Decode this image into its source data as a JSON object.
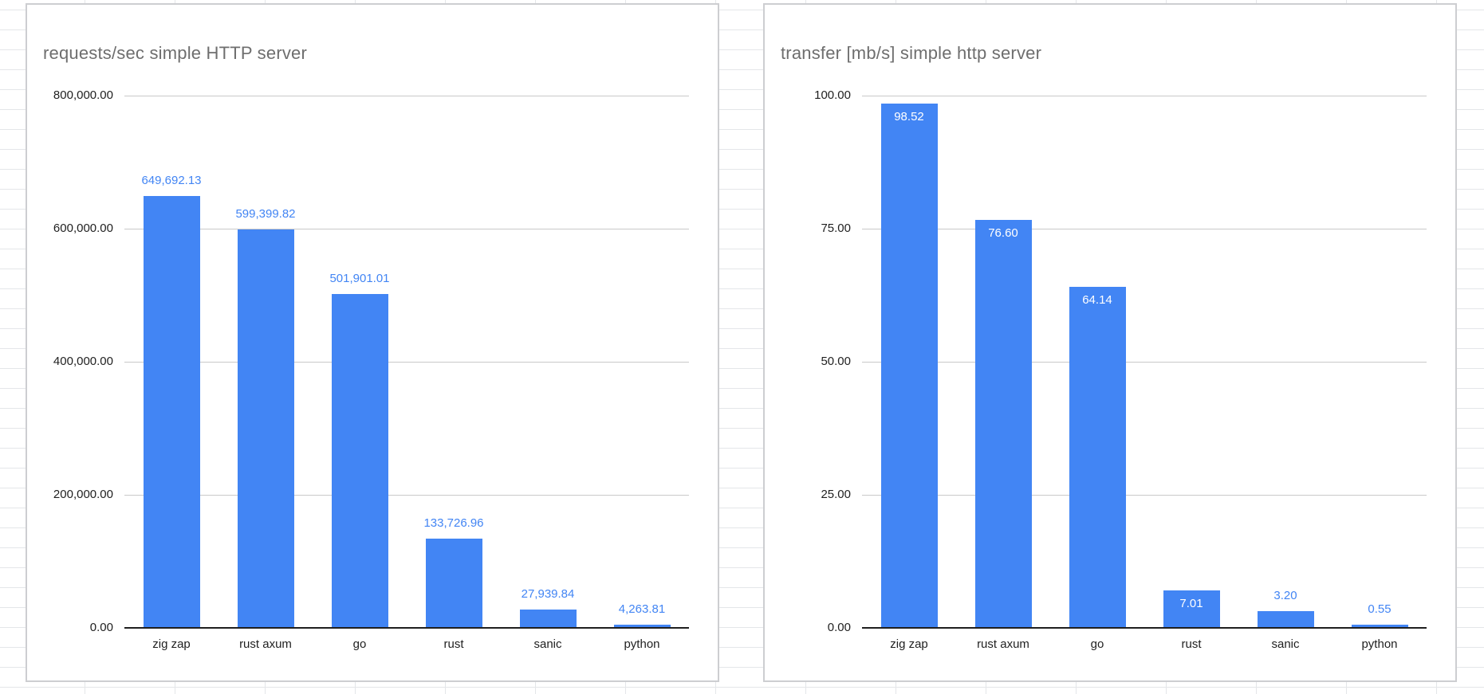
{
  "app": {
    "background": "spreadsheet-grid"
  },
  "palette": {
    "bar_blue": "#4285f4",
    "data_label_blue": "#4285f4",
    "data_label_white": "#ffffff",
    "title_gray": "#6e6e6e",
    "axis_text": "#1f1f1f",
    "gridline_gray": "#c9c9c9",
    "axis_line_dark": "#1f1f1f",
    "card_border": "#cdced1",
    "sheet_gridline": "#e4e6e9"
  },
  "chart_data": [
    {
      "type": "bar",
      "title": "requests/sec simple HTTP server",
      "categories": [
        "zig zap",
        "rust axum",
        "go",
        "rust",
        "sanic",
        "python"
      ],
      "values": [
        649692.13,
        599399.82,
        501901.01,
        133726.96,
        27939.84,
        4263.81
      ],
      "data_labels": [
        "649,692.13",
        "599,399.82",
        "501,901.01",
        "133,726.96",
        "27,939.84",
        "4,263.81"
      ],
      "data_label_placement": [
        "above",
        "above",
        "above",
        "above",
        "above",
        "above"
      ],
      "ylim": [
        0,
        800000
      ],
      "yticks": [
        {
          "value": 800000,
          "label": "800,000.00"
        },
        {
          "value": 600000,
          "label": "600,000.00"
        },
        {
          "value": 400000,
          "label": "400,000.00"
        },
        {
          "value": 200000,
          "label": "200,000.00"
        },
        {
          "value": 0,
          "label": "0.00"
        }
      ],
      "xlabel": "",
      "ylabel": "",
      "grid": true,
      "legend": "none",
      "bar_color": "#4285f4",
      "data_label_color": "#4285f4",
      "data_label_inside_color": "#ffffff"
    },
    {
      "type": "bar",
      "title": "transfer [mb/s] simple http server",
      "categories": [
        "zig zap",
        "rust axum",
        "go",
        "rust",
        "sanic",
        "python"
      ],
      "values": [
        98.52,
        76.6,
        64.14,
        7.01,
        3.2,
        0.55
      ],
      "data_labels": [
        "98.52",
        "76.60",
        "64.14",
        "7.01",
        "3.20",
        "0.55"
      ],
      "data_label_placement": [
        "inside",
        "inside",
        "inside",
        "inside",
        "above",
        "above"
      ],
      "ylim": [
        0,
        100
      ],
      "yticks": [
        {
          "value": 100,
          "label": "100.00"
        },
        {
          "value": 75,
          "label": "75.00"
        },
        {
          "value": 50,
          "label": "50.00"
        },
        {
          "value": 25,
          "label": "25.00"
        },
        {
          "value": 0,
          "label": "0.00"
        }
      ],
      "xlabel": "",
      "ylabel": "",
      "grid": true,
      "legend": "none",
      "bar_color": "#4285f4",
      "data_label_color": "#4285f4",
      "data_label_inside_color": "#ffffff"
    }
  ]
}
